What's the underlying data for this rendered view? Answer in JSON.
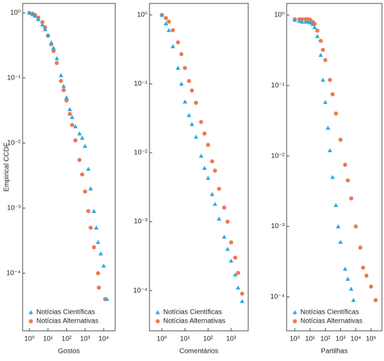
{
  "chart_data": [
    {
      "type": "scatter",
      "xlabel": "Gostos",
      "ylabel": "Empirical CCDF",
      "xlog": true,
      "ylog": true,
      "legend": "lower left",
      "xlim": [
        0.43,
        42000
      ],
      "ylim": [
        1.3e-05,
        1.4
      ],
      "xticks": [
        {
          "value": 1,
          "label": "10⁰"
        },
        {
          "value": 10,
          "label": "10¹"
        },
        {
          "value": 100,
          "label": "10²"
        },
        {
          "value": 1000,
          "label": "10³"
        },
        {
          "value": 10000,
          "label": "10⁴"
        }
      ],
      "yticks": [
        {
          "value": 1,
          "label": "10⁰"
        },
        {
          "value": 0.1,
          "label": "10⁻¹"
        },
        {
          "value": 0.01,
          "label": "10⁻²"
        },
        {
          "value": 0.001,
          "label": "10⁻³"
        },
        {
          "value": 0.0001,
          "label": "10⁻⁴"
        }
      ],
      "series": [
        {
          "name": "Notícias Alternativas",
          "color": "#f07850",
          "marker": "circle",
          "x": [
            1,
            1.5,
            2,
            3,
            5,
            7,
            10,
            15,
            20,
            30,
            50,
            70,
            100,
            150,
            200,
            300,
            500,
            700,
            1000,
            1500,
            2000,
            3000,
            5000,
            5500,
            12000
          ],
          "values": [
            1,
            0.97,
            0.93,
            0.85,
            0.72,
            0.6,
            0.45,
            0.33,
            0.26,
            0.17,
            0.09,
            0.065,
            0.045,
            0.028,
            0.019,
            0.011,
            0.0055,
            0.0033,
            0.0018,
            0.0009,
            0.0005,
            0.00025,
            0.0001,
            6e-05,
            4e-05
          ]
        },
        {
          "name": "Notícias Científicas",
          "color": "#29abe2",
          "marker": "triangle",
          "x": [
            1,
            1.5,
            2,
            3,
            5,
            7,
            10,
            15,
            20,
            30,
            50,
            70,
            100,
            150,
            200,
            300,
            500,
            700,
            1000,
            1500,
            2000,
            3000,
            4000,
            5000,
            7000,
            10000,
            15000
          ],
          "values": [
            1,
            0.95,
            0.9,
            0.8,
            0.66,
            0.56,
            0.45,
            0.35,
            0.29,
            0.2,
            0.11,
            0.075,
            0.05,
            0.033,
            0.025,
            0.018,
            0.014,
            0.012,
            0.009,
            0.004,
            0.002,
            0.0009,
            0.0005,
            0.0003,
            0.0002,
            0.00013,
            4e-05
          ]
        }
      ]
    },
    {
      "type": "scatter",
      "xlabel": "Comentários",
      "xlog": true,
      "ylog": true,
      "legend": "lower left",
      "xlim": [
        0.29,
        5500
      ],
      "ylim": [
        2.6e-05,
        1.47
      ],
      "xticks": [
        {
          "value": 1,
          "label": "10⁰"
        },
        {
          "value": 10,
          "label": "10¹"
        },
        {
          "value": 100,
          "label": "10²"
        },
        {
          "value": 1000,
          "label": "10³"
        }
      ],
      "yticks": [
        {
          "value": 1,
          "label": "10⁰"
        },
        {
          "value": 0.1,
          "label": "10⁻¹"
        },
        {
          "value": 0.01,
          "label": "10⁻²"
        },
        {
          "value": 0.001,
          "label": "10⁻³"
        },
        {
          "value": 0.0001,
          "label": "10⁻⁴"
        }
      ],
      "series": [
        {
          "name": "Notícias Alternativas",
          "color": "#f07850",
          "marker": "circle",
          "x": [
            1,
            1.5,
            2,
            3,
            5,
            7,
            10,
            15,
            20,
            30,
            50,
            70,
            100,
            150,
            200,
            300,
            500,
            700,
            1000,
            1500,
            2000,
            3000
          ],
          "values": [
            1,
            0.9,
            0.8,
            0.6,
            0.4,
            0.27,
            0.17,
            0.11,
            0.08,
            0.053,
            0.028,
            0.019,
            0.013,
            0.0075,
            0.0055,
            0.003,
            0.0016,
            0.001,
            0.0005,
            0.0003,
            0.00018,
            9e-05
          ]
        },
        {
          "name": "Notícias Científicas",
          "color": "#29abe2",
          "marker": "triangle",
          "x": [
            1,
            1.5,
            2,
            3,
            5,
            7,
            10,
            15,
            20,
            30,
            50,
            70,
            100,
            150,
            200,
            300,
            500,
            700,
            1000,
            1500,
            2000,
            3000
          ],
          "values": [
            1,
            0.75,
            0.6,
            0.35,
            0.17,
            0.1,
            0.055,
            0.035,
            0.026,
            0.017,
            0.009,
            0.006,
            0.0043,
            0.0025,
            0.0018,
            0.0011,
            0.0006,
            0.0004,
            0.00027,
            0.00017,
            0.00011,
            7e-05
          ]
        }
      ]
    },
    {
      "type": "scatter",
      "xlabel": "Partilhas",
      "xlog": true,
      "ylog": true,
      "legend": "lower left",
      "xlim": [
        0.29,
        520000
      ],
      "ylim": [
        3.3e-05,
        1.46
      ],
      "xticks": [
        {
          "value": 1,
          "label": "10⁰"
        },
        {
          "value": 10,
          "label": "10¹"
        },
        {
          "value": 100,
          "label": "10²"
        },
        {
          "value": 1000,
          "label": "10³"
        },
        {
          "value": 10000,
          "label": "10⁴"
        },
        {
          "value": 100000,
          "label": "10⁵"
        }
      ],
      "yticks": [
        {
          "value": 1,
          "label": "10⁰"
        },
        {
          "value": 0.1,
          "label": "10⁻¹"
        },
        {
          "value": 0.01,
          "label": "10⁻²"
        },
        {
          "value": 0.001,
          "label": "10⁻³"
        },
        {
          "value": 0.0001,
          "label": "10⁻⁴"
        }
      ],
      "series": [
        {
          "name": "Notícias Alternativas",
          "color": "#f07850",
          "marker": "circle",
          "x": [
            1,
            2,
            3,
            5,
            7,
            10,
            15,
            20,
            30,
            50,
            70,
            100,
            200,
            300,
            500,
            1000,
            2000,
            3000,
            5000,
            10000,
            20000,
            30000,
            50000,
            100000,
            200000
          ],
          "values": [
            0.87,
            0.87,
            0.87,
            0.87,
            0.87,
            0.86,
            0.8,
            0.75,
            0.6,
            0.43,
            0.32,
            0.23,
            0.12,
            0.075,
            0.04,
            0.017,
            0.0075,
            0.0045,
            0.0025,
            0.001,
            0.0005,
            0.00026,
            0.0002,
            0.00014,
            9e-05
          ]
        },
        {
          "name": "Notícias Científicas",
          "color": "#29abe2",
          "marker": "triangle",
          "x": [
            1,
            2,
            3,
            5,
            7,
            10,
            15,
            20,
            30,
            50,
            70,
            100,
            150,
            200,
            300,
            500,
            700,
            1000,
            2000,
            3000,
            5000,
            7000
          ],
          "values": [
            0.85,
            0.82,
            0.8,
            0.8,
            0.8,
            0.78,
            0.74,
            0.67,
            0.5,
            0.27,
            0.12,
            0.058,
            0.025,
            0.012,
            0.005,
            0.002,
            0.001,
            0.0006,
            0.00025,
            0.00018,
            0.00013,
            9e-05
          ]
        }
      ]
    }
  ]
}
